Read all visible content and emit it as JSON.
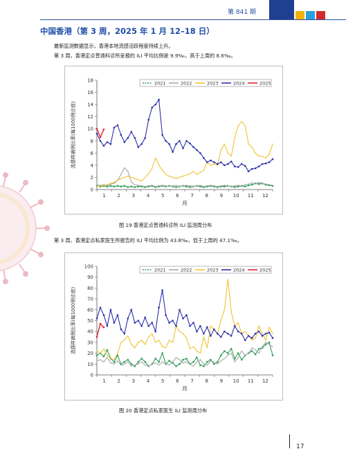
{
  "header": {
    "issue": "第 841 期",
    "brand_colors": [
      "#1f3f8f",
      "#f0b400",
      "#2aa0dc",
      "#d22b2b"
    ]
  },
  "section": {
    "title": "中国香港（第 3 周，2025 年 1 月 12–18 日）"
  },
  "paragraphs": {
    "p1": "最新监测数据显示，香港本地流感活跃程度持续上升。",
    "p2": "第 3 周，香港定点普通科诊所呈报的 ILI 平均比例是 9.9‰，高于上周的 8.6‰。",
    "p3": "第 3 周，香港定点私家医生所报告的 ILI 平均比例为 43.8‰，低于上周的 47.1‰。"
  },
  "captions": {
    "fig19": "图 19  香港定点普通科诊所 ILI 监测周分布",
    "fig20": "图 20  香港定点私家医生 ILI 监测周分布"
  },
  "page_number": "17",
  "chart_data": [
    {
      "type": "line",
      "title": "",
      "xlabel": "月",
      "ylabel": "流感样病例比率(每1000例诊症)",
      "ylim": [
        0,
        18
      ],
      "yticks": [
        0,
        2,
        4,
        6,
        8,
        10,
        12,
        14,
        16,
        18
      ],
      "x_ticks": [
        "1",
        "2",
        "3",
        "4",
        "5",
        "6",
        "7",
        "8",
        "9",
        "10",
        "11",
        "12"
      ],
      "x_unit": "week",
      "x_range": [
        1,
        52
      ],
      "legend_position": "top",
      "series": [
        {
          "name": "2021",
          "color": "#2e9e57",
          "dash": "dots",
          "x": [
            1,
            2,
            3,
            4,
            5,
            6,
            7,
            8,
            9,
            10,
            11,
            12,
            13,
            14,
            15,
            16,
            17,
            18,
            19,
            20,
            21,
            22,
            23,
            24,
            25,
            26,
            27,
            28,
            29,
            30,
            31,
            32,
            33,
            34,
            35,
            36,
            37,
            38,
            39,
            40,
            41,
            42,
            43,
            44,
            45,
            46,
            47,
            48,
            49,
            50,
            51,
            52
          ],
          "values": [
            0.6,
            0.5,
            0.6,
            0.5,
            0.6,
            0.5,
            0.6,
            0.5,
            0.6,
            0.4,
            0.5,
            0.4,
            0.5,
            0.5,
            0.4,
            0.5,
            0.6,
            0.4,
            0.5,
            0.6,
            0.5,
            0.6,
            0.5,
            0.4,
            0.5,
            0.6,
            0.5,
            0.4,
            0.5,
            0.6,
            0.5,
            0.4,
            0.5,
            0.6,
            0.5,
            0.4,
            0.5,
            0.5,
            0.6,
            0.5,
            0.4,
            0.5,
            0.6,
            0.5,
            0.7,
            0.8,
            1.0,
            0.9,
            1.0,
            0.8,
            0.7,
            0.6
          ]
        },
        {
          "name": "2022",
          "color": "#a8a8a8",
          "dash": "solid",
          "x": [
            1,
            2,
            3,
            4,
            5,
            6,
            7,
            8,
            9,
            10,
            11,
            12,
            13,
            14,
            15,
            16,
            17,
            18,
            19,
            20,
            21,
            22,
            23,
            24,
            25,
            26,
            27,
            28,
            29,
            30,
            31,
            32,
            33,
            34,
            35,
            36,
            37,
            38,
            39,
            40,
            41,
            42,
            43,
            44,
            45,
            46,
            47,
            48,
            49,
            50,
            51,
            52
          ],
          "values": [
            0.8,
            0.7,
            0.8,
            0.7,
            0.9,
            1.0,
            1.5,
            2.5,
            3.6,
            3.0,
            1.2,
            0.8,
            0.7,
            0.6,
            0.5,
            0.6,
            0.7,
            0.5,
            0.6,
            0.7,
            0.6,
            0.5,
            0.6,
            0.7,
            0.5,
            0.6,
            0.7,
            0.6,
            0.5,
            0.6,
            0.7,
            0.5,
            0.6,
            0.7,
            0.6,
            0.5,
            0.6,
            0.7,
            0.6,
            0.5,
            0.6,
            0.7,
            0.6,
            0.8,
            0.9,
            1.1,
            0.9,
            1.2,
            1.0,
            0.9,
            0.8,
            0.7
          ]
        },
        {
          "name": "2023",
          "color": "#f2c230",
          "dash": "solid",
          "x": [
            1,
            2,
            3,
            4,
            5,
            6,
            7,
            8,
            9,
            10,
            11,
            12,
            13,
            14,
            15,
            16,
            17,
            18,
            19,
            20,
            21,
            22,
            23,
            24,
            25,
            26,
            27,
            28,
            29,
            30,
            31,
            32,
            33,
            34,
            35,
            36,
            37,
            38,
            39,
            40,
            41,
            42,
            43,
            44,
            45,
            46,
            47,
            48,
            49,
            50,
            51,
            52
          ],
          "values": [
            0.5,
            0.6,
            0.7,
            0.8,
            1.0,
            1.2,
            1.5,
            1.8,
            2.0,
            2.2,
            2.0,
            1.8,
            1.6,
            1.4,
            2.0,
            2.6,
            3.5,
            5.2,
            4.0,
            3.2,
            2.5,
            2.2,
            2.0,
            1.8,
            2.0,
            2.2,
            2.4,
            2.6,
            3.0,
            2.5,
            2.8,
            3.2,
            4.5,
            4.0,
            4.2,
            4.0,
            6.5,
            7.5,
            6.0,
            5.5,
            8.5,
            10.5,
            11.2,
            10.5,
            7.5,
            7.0,
            6.0,
            5.5,
            5.5,
            5.2,
            5.8,
            7.5
          ]
        },
        {
          "name": "2024",
          "color": "#2b2fa8",
          "dash": "solid",
          "x": [
            1,
            2,
            3,
            4,
            5,
            6,
            7,
            8,
            9,
            10,
            11,
            12,
            13,
            14,
            15,
            16,
            17,
            18,
            19,
            20,
            21,
            22,
            23,
            24,
            25,
            26,
            27,
            28,
            29,
            30,
            31,
            32,
            33,
            34,
            35,
            36,
            37,
            38,
            39,
            40,
            41,
            42,
            43,
            44,
            45,
            46,
            47,
            48,
            49,
            50,
            51,
            52
          ],
          "values": [
            9.2,
            8.0,
            7.2,
            7.8,
            7.5,
            10.2,
            10.6,
            9.0,
            7.8,
            8.5,
            9.5,
            8.5,
            7.0,
            7.5,
            8.5,
            11.5,
            13.5,
            14.0,
            14.8,
            9.0,
            8.0,
            7.5,
            6.2,
            7.5,
            8.0,
            6.8,
            8.0,
            7.6,
            7.0,
            6.5,
            6.0,
            5.2,
            4.5,
            4.8,
            4.5,
            4.2,
            4.5,
            4.0,
            4.2,
            4.6,
            3.8,
            3.7,
            4.2,
            3.9,
            3.0,
            3.4,
            3.5,
            3.8,
            4.2,
            4.3,
            4.5,
            5.0
          ]
        },
        {
          "name": "2025",
          "color": "#e0222d",
          "dash": "solid",
          "x": [
            1,
            2,
            3
          ],
          "values": [
            10.0,
            8.6,
            9.9
          ]
        }
      ]
    },
    {
      "type": "line",
      "title": "",
      "xlabel": "月",
      "ylabel": "流感样病例比率(每1000例诊症)",
      "ylim": [
        0,
        100
      ],
      "yticks": [
        0,
        10,
        20,
        30,
        40,
        50,
        60,
        70,
        80,
        90,
        100
      ],
      "x_ticks": [
        "1",
        "2",
        "3",
        "4",
        "5",
        "6",
        "7",
        "8",
        "9",
        "10",
        "11",
        "12"
      ],
      "x_unit": "week",
      "x_range": [
        1,
        52
      ],
      "legend_position": "top",
      "series": [
        {
          "name": "2021",
          "color": "#2e9e57",
          "dash": "dots",
          "x": [
            1,
            2,
            3,
            4,
            5,
            6,
            7,
            8,
            9,
            10,
            11,
            12,
            13,
            14,
            15,
            16,
            17,
            18,
            19,
            20,
            21,
            22,
            23,
            24,
            25,
            26,
            27,
            28,
            29,
            30,
            31,
            32,
            33,
            34,
            35,
            36,
            37,
            38,
            39,
            40,
            41,
            42,
            43,
            44,
            45,
            46,
            47,
            48,
            49,
            50,
            51,
            52
          ],
          "values": [
            18,
            20,
            17,
            23,
            15,
            12,
            18,
            10,
            12,
            14,
            10,
            8,
            12,
            15,
            12,
            8,
            10,
            15,
            12,
            20,
            10,
            13,
            11,
            8,
            10,
            14,
            15,
            10,
            12,
            16,
            9,
            8,
            12,
            14,
            10,
            12,
            18,
            22,
            20,
            24,
            15,
            20,
            14,
            18,
            20,
            22,
            19,
            24,
            25,
            28,
            30,
            18
          ]
        },
        {
          "name": "2022",
          "color": "#a8a8a8",
          "dash": "solid",
          "x": [
            1,
            2,
            3,
            4,
            5,
            6,
            7,
            8,
            9,
            10,
            11,
            12,
            13,
            14,
            15,
            16,
            17,
            18,
            19,
            20,
            21,
            22,
            23,
            24,
            25,
            26,
            27,
            28,
            29,
            30,
            31,
            32,
            33,
            34,
            35,
            36,
            37,
            38,
            39,
            40,
            41,
            42,
            43,
            44,
            45,
            46,
            47,
            48,
            49,
            50,
            51,
            52
          ],
          "values": [
            13,
            14,
            12,
            16,
            11,
            10,
            13,
            9,
            10,
            12,
            8,
            9,
            10,
            12,
            9,
            8,
            10,
            11,
            9,
            12,
            10,
            9,
            12,
            16,
            14,
            11,
            12,
            10,
            8,
            12,
            14,
            10,
            9,
            13,
            12,
            10,
            13,
            15,
            18,
            20,
            12,
            16,
            22,
            18,
            20,
            25,
            23,
            20,
            26,
            30,
            28,
            26
          ]
        },
        {
          "name": "2023",
          "color": "#f2c230",
          "dash": "solid",
          "x": [
            1,
            2,
            3,
            4,
            5,
            6,
            7,
            8,
            9,
            10,
            11,
            12,
            13,
            14,
            15,
            16,
            17,
            18,
            19,
            20,
            21,
            22,
            23,
            24,
            25,
            26,
            27,
            28,
            29,
            30,
            31,
            32,
            33,
            34,
            35,
            36,
            37,
            38,
            39,
            40,
            41,
            42,
            43,
            44,
            45,
            46,
            47,
            48,
            49,
            50,
            51,
            52
          ],
          "values": [
            22,
            20,
            24,
            18,
            15,
            14,
            20,
            30,
            32,
            36,
            28,
            25,
            30,
            32,
            28,
            35,
            38,
            30,
            32,
            26,
            25,
            32,
            30,
            45,
            40,
            38,
            34,
            24,
            26,
            22,
            20,
            35,
            25,
            45,
            42,
            38,
            50,
            60,
            88,
            58,
            45,
            48,
            38,
            40,
            36,
            32,
            34,
            45,
            38,
            32,
            44,
            38
          ]
        },
        {
          "name": "2024",
          "color": "#2b2fa8",
          "dash": "solid",
          "x": [
            1,
            2,
            3,
            4,
            5,
            6,
            7,
            8,
            9,
            10,
            11,
            12,
            13,
            14,
            15,
            16,
            17,
            18,
            19,
            20,
            21,
            22,
            23,
            24,
            25,
            26,
            27,
            28,
            29,
            30,
            31,
            32,
            33,
            34,
            35,
            36,
            37,
            38,
            39,
            40,
            41,
            42,
            43,
            44,
            45,
            46,
            47,
            48,
            49,
            50,
            51,
            52
          ],
          "values": [
            52,
            62,
            55,
            45,
            60,
            48,
            55,
            42,
            38,
            52,
            60,
            48,
            50,
            45,
            53,
            45,
            48,
            40,
            62,
            78,
            55,
            48,
            50,
            45,
            60,
            52,
            55,
            45,
            48,
            40,
            45,
            38,
            44,
            36,
            42,
            38,
            35,
            40,
            38,
            36,
            45,
            40,
            38,
            32,
            36,
            34,
            38,
            40,
            36,
            38,
            39,
            34
          ]
        },
        {
          "name": "2025",
          "color": "#e0222d",
          "dash": "solid",
          "x": [
            1,
            2,
            3
          ],
          "values": [
            35,
            47.1,
            43.8
          ]
        }
      ]
    }
  ]
}
